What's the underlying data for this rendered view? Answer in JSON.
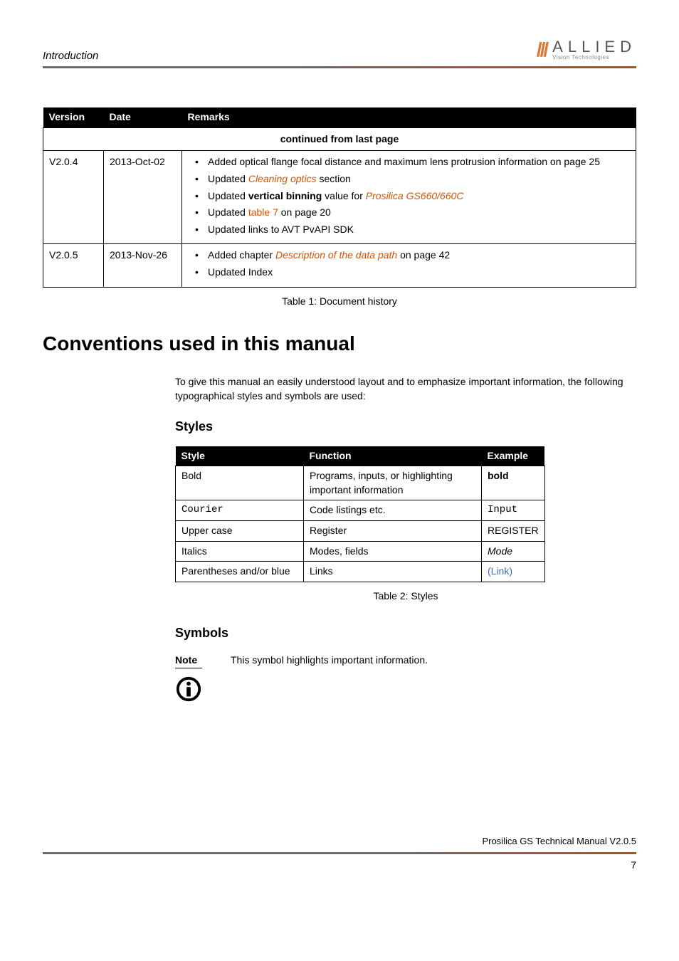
{
  "header": {
    "section_title": "Introduction",
    "logo_slashes": "///",
    "logo_main": "ALLIED",
    "logo_sub": "Vision Technologies"
  },
  "history_table": {
    "headers": [
      "Version",
      "Date",
      "Remarks"
    ],
    "continued_label": "continued from last page",
    "col_widths": [
      "85px",
      "110px",
      "auto"
    ],
    "rows": [
      {
        "version": "V2.0.4",
        "date": "2013-Oct-02",
        "remarks": [
          {
            "pre": "Added optical flange focal distance and maximum lens protrusion information on page 25"
          },
          {
            "pre": "Updated ",
            "link": "Cleaning optics",
            "post": " section"
          },
          {
            "pre": "Updated ",
            "bold": "vertical binning",
            "mid": " value for ",
            "link": "Prosilica GS660/660C"
          },
          {
            "pre": "Updated ",
            "link_plain": "table 7",
            "post": " on page 20"
          },
          {
            "pre": "Updated links to AVT PvAPI SDK"
          }
        ]
      },
      {
        "version": "V2.0.5",
        "date": "2013-Nov-26",
        "remarks": [
          {
            "pre": "Added chapter  ",
            "link": "Description of the data path",
            "post": " on page 42"
          },
          {
            "pre": "Updated Index"
          }
        ]
      }
    ],
    "caption": "Table 1: Document history"
  },
  "conventions": {
    "heading": "Conventions used in this manual",
    "intro": "To give this manual an easily understood layout and to emphasize important information, the following typographical styles and symbols are used:",
    "styles_heading": "Styles",
    "styles_table": {
      "headers": [
        "Style",
        "Function",
        "Example"
      ],
      "col_widths": [
        "180px",
        "250px",
        "75px"
      ],
      "rows": [
        {
          "style": "Bold",
          "function": "Programs, inputs, or highlighting important information",
          "example": "bold",
          "example_class": "bold"
        },
        {
          "style": "Courier",
          "style_class": "mono",
          "function": "Code listings etc.",
          "example": "Input",
          "example_class": "mono"
        },
        {
          "style": "Upper case",
          "function": "Register",
          "example": "REGISTER"
        },
        {
          "style": "Italics",
          "function": "Modes, fields",
          "example": "Mode",
          "example_class": "italic"
        },
        {
          "style": "Parentheses and/or blue",
          "function": "Links",
          "example": "(Link)",
          "example_class": "link"
        }
      ],
      "caption": "Table 2: Styles"
    },
    "symbols_heading": "Symbols",
    "note_label": "Note",
    "note_text": "This symbol highlights important information."
  },
  "footer": {
    "text": "Prosilica GS Technical Manual  V2.0.5",
    "page": "7"
  },
  "colors": {
    "orange_link": "#d35400",
    "blue_link": "#3b6fb0"
  }
}
